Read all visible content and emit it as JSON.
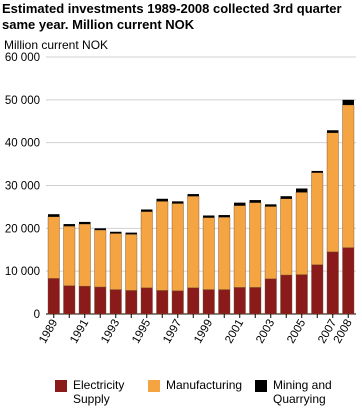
{
  "chart_data": {
    "type": "bar",
    "stacked": true,
    "title": "Estimated investments 1989-2008 collected 3rd quarter same year. Million current NOK",
    "y_label": "Million current NOK",
    "categories": [
      "1989",
      null,
      "1991",
      null,
      "1993",
      null,
      "1995",
      null,
      "1997",
      null,
      "1999",
      null,
      "2001",
      null,
      "2003",
      null,
      "2005",
      null,
      "2007",
      "2008"
    ],
    "series": [
      {
        "name": "Electricity Supply",
        "color": "#8b1a1a",
        "values": [
          8300,
          6600,
          6500,
          6300,
          5700,
          5500,
          6100,
          5500,
          5400,
          6100,
          5700,
          5700,
          6200,
          6200,
          8200,
          9100,
          9200,
          11500,
          14500,
          15500
        ]
      },
      {
        "name": "Manufacturing",
        "color": "#f5a442",
        "values": [
          14400,
          13900,
          14500,
          13300,
          13100,
          13100,
          17800,
          20800,
          20400,
          21400,
          16800,
          16900,
          19100,
          19800,
          16900,
          17800,
          19200,
          21500,
          27800,
          33300
        ]
      },
      {
        "name": "Mining and Quarrying",
        "color": "#000000",
        "values": [
          600,
          500,
          500,
          400,
          400,
          400,
          500,
          600,
          500,
          500,
          500,
          500,
          700,
          600,
          500,
          600,
          900,
          400,
          600,
          1200
        ]
      }
    ],
    "ylim": [
      0,
      60000
    ],
    "yticks": [
      0,
      {
        "value": 10000,
        "label": "10 000"
      },
      {
        "value": 20000,
        "label": "20 000"
      },
      {
        "value": 30000,
        "label": "30 000"
      },
      {
        "value": 40000,
        "label": "40 000"
      },
      {
        "value": 50000,
        "label": "50 000"
      },
      {
        "value": 60000,
        "label": "60 000"
      }
    ],
    "grid": true
  }
}
